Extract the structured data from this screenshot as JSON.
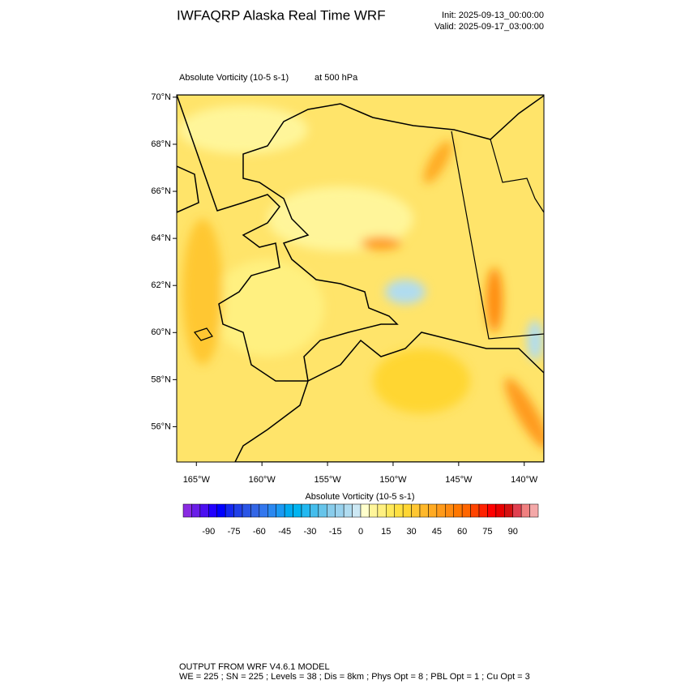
{
  "header": {
    "title": "IWFAQRP Alaska Real Time WRF",
    "init": "Init: 2025-09-13_00:00:00",
    "valid": "Valid: 2025-09-17_03:00:00"
  },
  "map": {
    "field": "Absolute Vorticity   (10-5 s-1)",
    "level": "at   500 hPa",
    "xlim": [
      -166.5,
      -138.5
    ],
    "ylim": [
      54.5,
      70.1
    ],
    "xticks": [
      {
        "value": -165,
        "label": "165°W"
      },
      {
        "value": -160,
        "label": "160°W"
      },
      {
        "value": -155,
        "label": "155°W"
      },
      {
        "value": -150,
        "label": "150°W"
      },
      {
        "value": -145,
        "label": "145°W"
      },
      {
        "value": -140,
        "label": "140°W"
      }
    ],
    "yticks": [
      {
        "value": 70,
        "label": "70°N"
      },
      {
        "value": 68,
        "label": "68°N"
      },
      {
        "value": 66,
        "label": "66°N"
      },
      {
        "value": 64,
        "label": "64°N"
      },
      {
        "value": 62,
        "label": "62°N"
      },
      {
        "value": 60,
        "label": "60°N"
      },
      {
        "value": 58,
        "label": "58°N"
      },
      {
        "value": 56,
        "label": "56°N"
      }
    ]
  },
  "colorbar": {
    "title": "Absolute Vorticity  (10-5 s-1)",
    "lim": [
      -105,
      105
    ],
    "ticks": [
      -90,
      -75,
      -60,
      -45,
      -30,
      -15,
      0,
      15,
      30,
      45,
      60,
      75,
      90
    ],
    "colors": [
      "#8a2be2",
      "#6a1ee8",
      "#4b0ff0",
      "#2200ff",
      "#0000ff",
      "#1428f0",
      "#2040e8",
      "#2a55e6",
      "#3366e6",
      "#3377ee",
      "#2a88f0",
      "#1a99f2",
      "#00aaf0",
      "#00b4f0",
      "#22b8f0",
      "#44bdec",
      "#66c4ea",
      "#88cceb",
      "#99d2ee",
      "#b0dcf0",
      "#cce8f4",
      "#ffffcc",
      "#fff59a",
      "#fff080",
      "#ffe95a",
      "#ffe040",
      "#ffd633",
      "#ffc733",
      "#ffb82a",
      "#ffaa22",
      "#ff9a1a",
      "#ff8a10",
      "#ff7700",
      "#ff6600",
      "#ff4400",
      "#ff2200",
      "#ff0000",
      "#e80000",
      "#d41111",
      "#e04050",
      "#f08080",
      "#f4a8a8"
    ]
  },
  "footer": {
    "line1": "OUTPUT FROM WRF V4.6.1 MODEL",
    "line2": "WE = 225 ; SN = 225 ; Levels = 38 ; Dis = 8km ; Phys Opt = 8 ; PBL Opt = 1 ; Cu Opt = 3"
  }
}
